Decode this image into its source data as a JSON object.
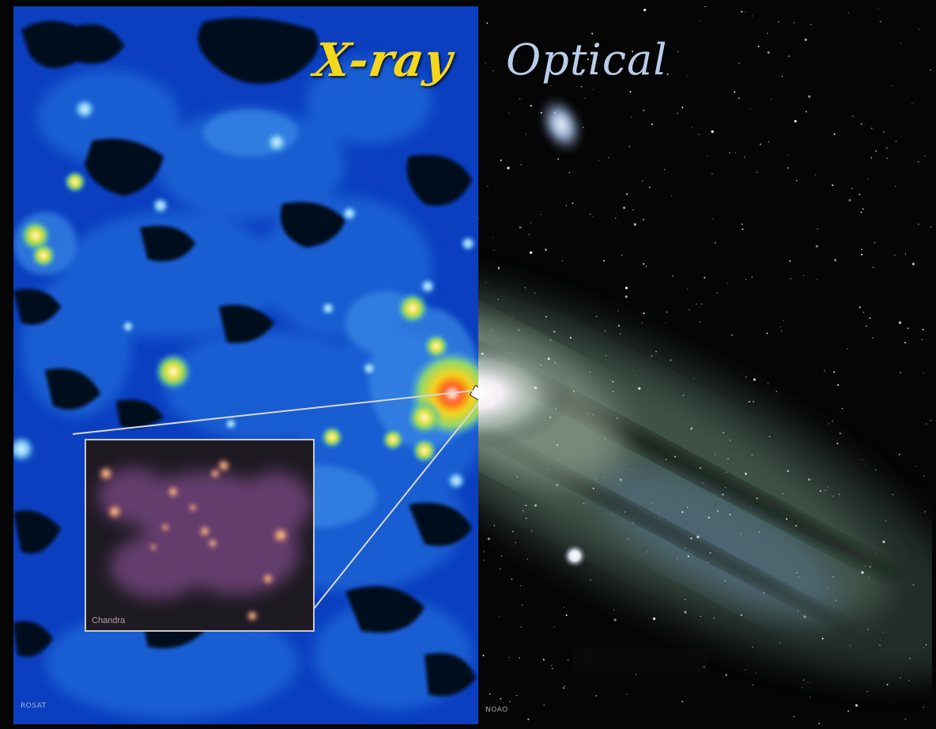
{
  "panels": {
    "left_title": "X-ray",
    "right_title": "Optical"
  },
  "inset": {
    "label": "Chandra"
  },
  "credits": {
    "left": "ROSAT",
    "right": "NOAO"
  },
  "colors": {
    "xray_title": "#f5d81c",
    "optical_title": "#b9cde8",
    "xray_background": "#0b3fbf",
    "optical_background": "#050505",
    "inset_border": "#c9c9c9"
  }
}
